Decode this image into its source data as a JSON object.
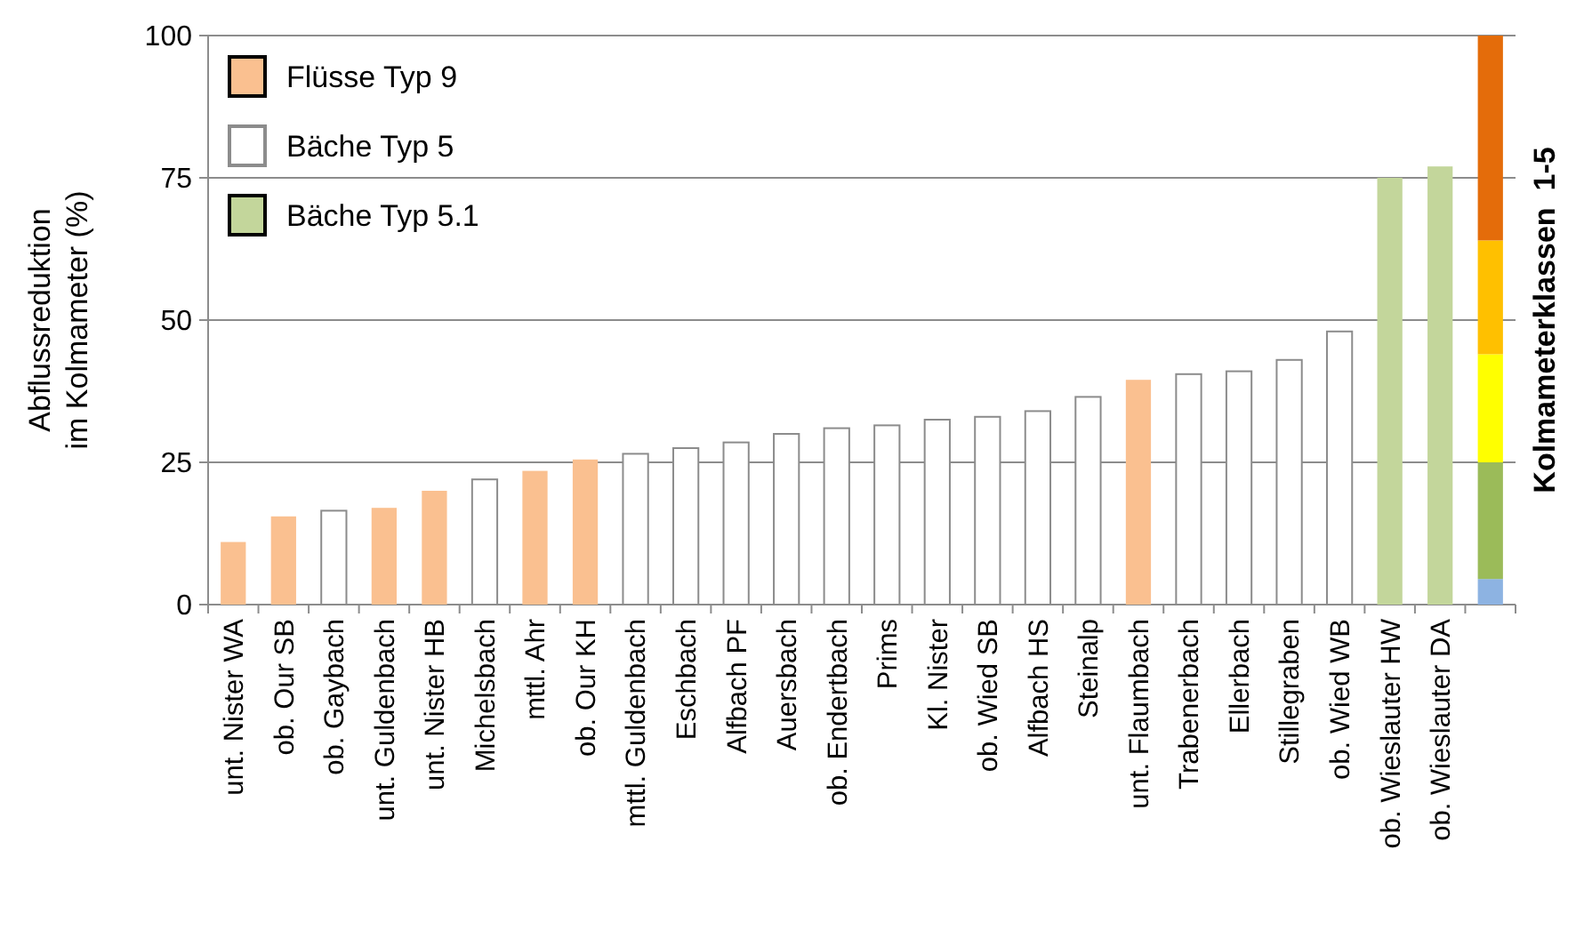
{
  "chart_data": {
    "type": "bar",
    "stacked": true,
    "ylabel": "Abflussreduktion\nim Kolmameter (%)",
    "y2label": "Kolmameterklassen  1-5",
    "categories": [
      "unt. Nister WA",
      "ob. Our SB",
      "ob. Gaybach",
      "unt. Guldenbach",
      "unt. Nister HB",
      "Michelsbach",
      "mttl. Ahr",
      "ob. Our KH",
      "mttl. Guldenbach",
      "Eschbach",
      "Alfbach PF",
      "Auersbach",
      "ob. Endertbach",
      "Prims",
      "Kl. Nister",
      "ob. Wied SB",
      "Alfbach HS",
      "Steinalp",
      "unt. Flaumbach",
      "Trabenerbach",
      "Ellerbach",
      "Stillegraben",
      "ob. Wied WB",
      "ob. Wieslauter HW",
      "ob. Wieslauter DA",
      null
    ],
    "series": [
      {
        "name": "Flüsse Typ 9",
        "color": "#fac090",
        "values": [
          11,
          15.5,
          null,
          17,
          20,
          null,
          23.5,
          25.5,
          null,
          null,
          null,
          null,
          null,
          null,
          null,
          null,
          null,
          null,
          39.5,
          null,
          null,
          null,
          null,
          null,
          null,
          null
        ]
      },
      {
        "name": "Bäche Typ 5",
        "color": "#ffffff",
        "values": [
          null,
          null,
          16.5,
          null,
          null,
          22,
          null,
          null,
          26.5,
          27.5,
          28.5,
          30,
          31,
          31.5,
          32.5,
          33,
          34,
          36.5,
          null,
          40.5,
          41,
          43,
          48,
          null,
          null,
          null
        ]
      },
      {
        "name": "Bäche Typ 5.1",
        "color": "#c3d69b",
        "values": [
          null,
          null,
          null,
          null,
          null,
          null,
          null,
          null,
          null,
          null,
          null,
          null,
          null,
          null,
          null,
          null,
          null,
          null,
          null,
          null,
          null,
          null,
          null,
          75,
          77,
          null
        ]
      },
      {
        "color": "#8db3e2",
        "values": [
          null,
          null,
          null,
          null,
          null,
          null,
          null,
          null,
          null,
          null,
          null,
          null,
          null,
          null,
          null,
          null,
          null,
          null,
          null,
          null,
          null,
          null,
          null,
          null,
          null,
          4.5
        ]
      },
      {
        "color": "#9bbb59",
        "values": [
          null,
          null,
          null,
          null,
          null,
          null,
          null,
          null,
          null,
          null,
          null,
          null,
          null,
          null,
          null,
          null,
          null,
          null,
          null,
          null,
          null,
          null,
          null,
          null,
          null,
          20.5
        ]
      },
      {
        "color": "#ffff00",
        "values": [
          null,
          null,
          null,
          null,
          null,
          null,
          null,
          null,
          null,
          null,
          null,
          null,
          null,
          null,
          null,
          null,
          null,
          null,
          null,
          null,
          null,
          null,
          null,
          null,
          null,
          19
        ]
      },
      {
        "color": "#ffc000",
        "values": [
          null,
          null,
          null,
          null,
          null,
          null,
          null,
          null,
          null,
          null,
          null,
          null,
          null,
          null,
          null,
          null,
          null,
          null,
          null,
          null,
          null,
          null,
          null,
          null,
          null,
          20
        ]
      },
      {
        "color": "#e46c0a",
        "values": [
          null,
          null,
          null,
          null,
          null,
          null,
          null,
          null,
          null,
          null,
          null,
          null,
          null,
          null,
          null,
          null,
          null,
          null,
          null,
          null,
          null,
          null,
          null,
          null,
          null,
          36
        ]
      }
    ],
    "ylim": [
      0,
      100
    ],
    "yticks": [
      0,
      25,
      50,
      75,
      100
    ],
    "grid": "y",
    "legend": "top left"
  }
}
